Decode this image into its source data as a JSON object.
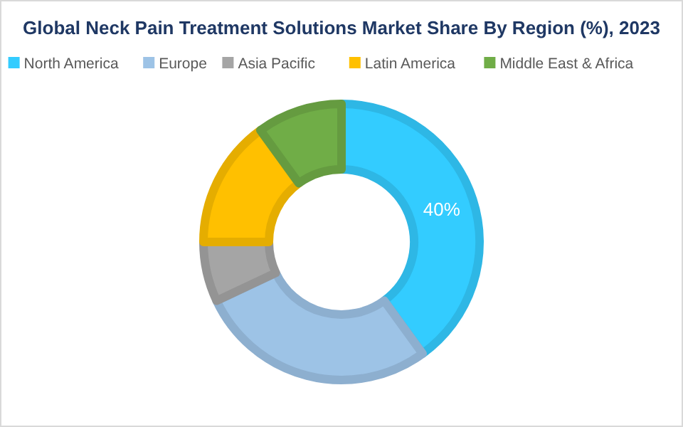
{
  "chart_data": {
    "type": "donut",
    "title": "Global Neck Pain Treatment Solutions Market Share By Region (%), 2023",
    "categories": [
      "North America",
      "Europe",
      "Asia Pacific",
      "Latin America",
      "Middle East & Africa"
    ],
    "values": [
      40,
      28,
      7,
      15,
      10
    ],
    "colors": [
      "#33ccff",
      "#9dc3e6",
      "#a5a5a5",
      "#ffc000",
      "#70ad47"
    ],
    "value_labels": [
      "40%",
      null,
      null,
      null,
      null
    ],
    "legend": "top"
  }
}
